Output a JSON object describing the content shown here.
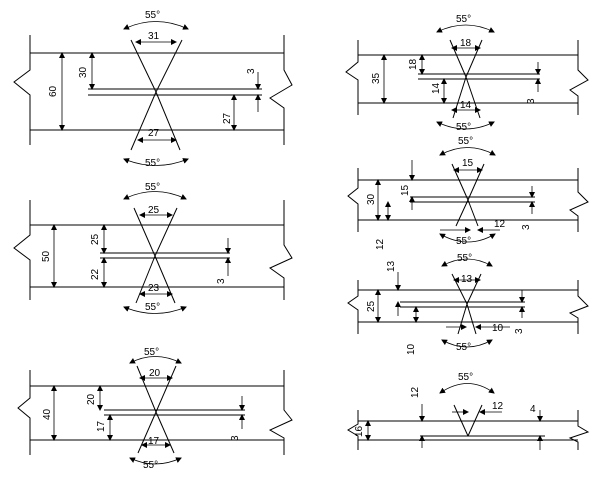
{
  "joints": [
    {
      "id": "x60",
      "angle_top": "55°",
      "angle_bottom": "55°",
      "root_top": "31",
      "root_bottom": "27",
      "thickness": "60",
      "depth_top": "30",
      "depth_bottom": "27",
      "gap": "3"
    },
    {
      "id": "x50",
      "angle_top": "55°",
      "angle_bottom": "55°",
      "root_top": "25",
      "root_bottom": "23",
      "thickness": "50",
      "depth_top": "25",
      "depth_bottom": "22",
      "gap": "3"
    },
    {
      "id": "x40",
      "angle_top": "55°",
      "angle_bottom": "55°",
      "root_top": "20",
      "root_bottom": "17",
      "thickness": "40",
      "depth_top": "20",
      "depth_bottom": "17",
      "gap": "3"
    },
    {
      "id": "x35",
      "angle_top": "55°",
      "angle_bottom": "55°",
      "root_top": "18",
      "root_bottom": "14",
      "thickness": "35",
      "depth_top": "18",
      "depth_bottom": "14",
      "gap": "3"
    },
    {
      "id": "x30",
      "angle_top": "55°",
      "angle_bottom": "55°",
      "root_top": "15",
      "root_bottom": "12",
      "thickness": "30",
      "depth_top": "15",
      "depth_bottom": "12",
      "gap": "3"
    },
    {
      "id": "x25",
      "angle_top": "55°",
      "angle_bottom": "55°",
      "root_top": "13",
      "root_bottom": "10",
      "thickness": "25",
      "depth_top": "13",
      "depth_bottom": "10",
      "gap": "3"
    },
    {
      "id": "v16",
      "angle_top": "55°",
      "root_top": "12",
      "thickness": "16",
      "depth_top": "12",
      "gap": "4"
    }
  ]
}
